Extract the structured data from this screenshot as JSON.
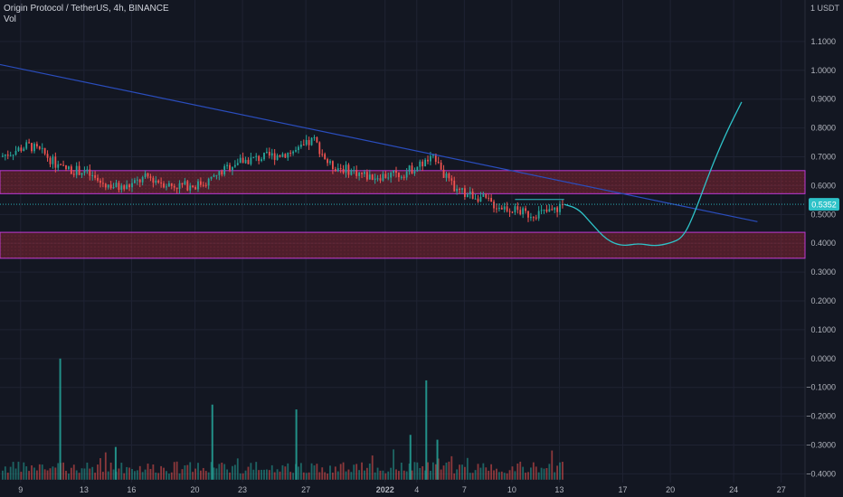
{
  "legend": {
    "symbol": "Origin Protocol / TetherUS, 4h, BINANCE",
    "volume_label": "Vol"
  },
  "price_scale": {
    "currency_label": "1 USDT",
    "current_price_label": "0.5352"
  },
  "colors": {
    "background": "#131722",
    "grid": "#1f2333",
    "up": "#26a69a",
    "down": "#ef5350",
    "trendline": "#2a4dbd",
    "projection": "#2ec2c8",
    "zone_fill": "rgba(150,40,55,0.45)",
    "zone_border": "#c03ad6",
    "text": "#b2b5be"
  },
  "chart_data": {
    "type": "candlestick",
    "title": "Origin Protocol / TetherUS, 4h, BINANCE",
    "y_axis": {
      "ticks": [
        "1.1000",
        "1.0000",
        "0.9000",
        "0.8000",
        "0.7000",
        "0.6000",
        "0.5000",
        "0.4000",
        "0.3000",
        "0.2000",
        "0.1000",
        "0.0000",
        "−0.1000",
        "−0.2000",
        "−0.3000",
        "−0.4000"
      ],
      "range": [
        -0.43,
        1.2
      ]
    },
    "x_axis": {
      "labels": [
        "9",
        "13",
        "16",
        "20",
        "23",
        "27",
        "2022",
        "4",
        "7",
        "10",
        "13",
        "17",
        "20",
        "24",
        "27"
      ],
      "day_index": [
        0,
        4,
        7,
        11,
        14,
        18,
        23,
        25,
        28,
        31,
        34,
        38,
        41,
        45,
        48
      ],
      "range_days": [
        -1.3,
        49.5
      ]
    },
    "price_keypoints": [
      [
        -1.3,
        0.7
      ],
      [
        0.5,
        0.74
      ],
      [
        1.5,
        0.71
      ],
      [
        2.5,
        0.66
      ],
      [
        4,
        0.65
      ],
      [
        5,
        0.61
      ],
      [
        6.5,
        0.59
      ],
      [
        8,
        0.63
      ],
      [
        9.5,
        0.6
      ],
      [
        11,
        0.6
      ],
      [
        12,
        0.62
      ],
      [
        13.5,
        0.68
      ],
      [
        15.5,
        0.7
      ],
      [
        17.5,
        0.72
      ],
      [
        18.5,
        0.76
      ],
      [
        19.5,
        0.67
      ],
      [
        21,
        0.65
      ],
      [
        22,
        0.63
      ],
      [
        24,
        0.64
      ],
      [
        25.5,
        0.68
      ],
      [
        26.3,
        0.7
      ],
      [
        26.8,
        0.63
      ],
      [
        27.5,
        0.58
      ],
      [
        29,
        0.56
      ],
      [
        30,
        0.53
      ],
      [
        31,
        0.52
      ],
      [
        32,
        0.5
      ],
      [
        33.5,
        0.51
      ],
      [
        34.3,
        0.535
      ]
    ],
    "projection": [
      [
        34.3,
        0.535
      ],
      [
        35.2,
        0.52
      ],
      [
        36,
        0.47
      ],
      [
        37,
        0.41
      ],
      [
        38,
        0.39
      ],
      [
        39,
        0.4
      ],
      [
        40,
        0.39
      ],
      [
        41,
        0.4
      ],
      [
        41.8,
        0.42
      ],
      [
        42.5,
        0.5
      ],
      [
        43.5,
        0.65
      ],
      [
        44.5,
        0.78
      ],
      [
        45.5,
        0.89
      ]
    ],
    "trendline": {
      "start": [
        -1.3,
        1.02
      ],
      "end": [
        46.5,
        0.475
      ]
    },
    "zones": [
      {
        "top": 0.652,
        "bottom": 0.572
      },
      {
        "top": 0.438,
        "bottom": 0.348
      }
    ],
    "resistance_segment": {
      "start": [
        31.2,
        0.552
      ],
      "end": [
        34.3,
        0.552
      ]
    },
    "current_price": 0.5352,
    "volume": {
      "type": "bar",
      "baseline_value": -0.42,
      "max_value": 0.0,
      "spikes": [
        [
          2.5,
          1.0
        ],
        [
          12.1,
          0.62
        ],
        [
          17.4,
          0.58
        ],
        [
          25.6,
          0.82
        ],
        [
          26.3,
          0.33
        ],
        [
          24.6,
          0.37
        ],
        [
          6.0,
          0.27
        ]
      ]
    }
  }
}
